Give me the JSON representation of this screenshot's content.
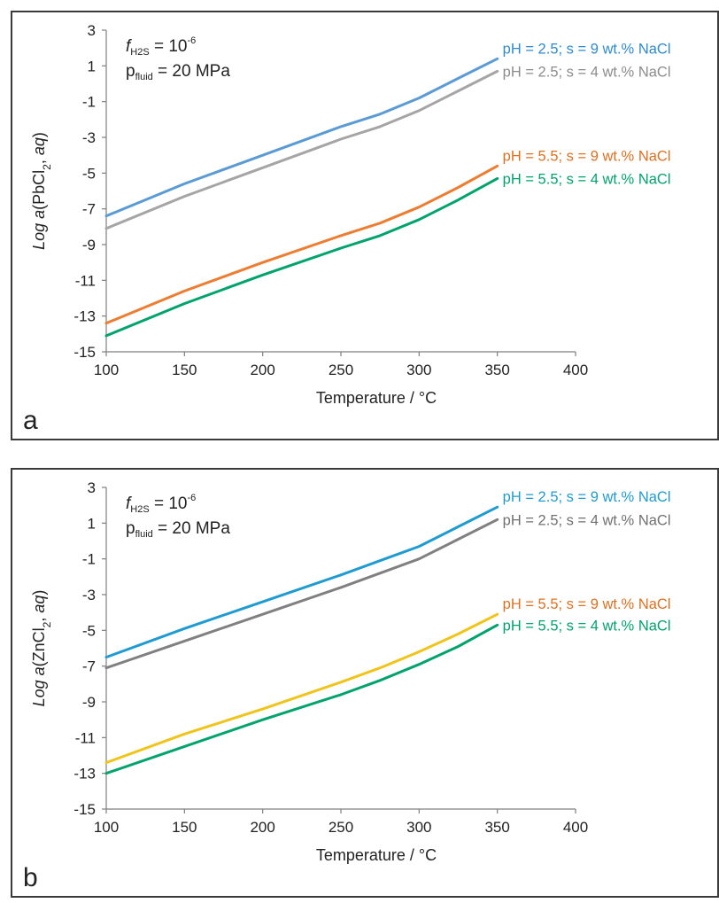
{
  "chart_data": [
    {
      "type": "line",
      "panel_label": "a",
      "annotation_f_symbol": "f",
      "annotation_f_sub": "H2S",
      "annotation_f_eq": " = 10",
      "annotation_f_exp": "-6",
      "annotation_p_symbol": "p",
      "annotation_p_sub": "fluid",
      "annotation_p_eq": " = 20 MPa",
      "ylabel_prefix": "Log ",
      "ylabel_a": "a",
      "ylabel_mid": "(PbCl",
      "ylabel_sub": "2",
      "ylabel_comma": ", ",
      "ylabel_aq": "aq",
      "ylabel_end": ")",
      "xlabel": "Temperature / °C",
      "xlim": [
        100,
        400
      ],
      "ylim": [
        -15,
        3
      ],
      "x_ticks": [
        "100",
        "150",
        "200",
        "250",
        "300",
        "350",
        "400"
      ],
      "y_ticks": [
        "3",
        "1",
        "-1",
        "-3",
        "-5",
        "-7",
        "-9",
        "-11",
        "-13",
        "-15"
      ],
      "series": [
        {
          "name": "pH = 2.5; s = 9 wt.% NaCl",
          "color": "#5b9bd5",
          "x": [
            100,
            150,
            200,
            250,
            275,
            300,
            325,
            350
          ],
          "y": [
            -7.4,
            -5.6,
            -4.0,
            -2.4,
            -1.7,
            -0.8,
            0.3,
            1.4
          ]
        },
        {
          "name": "pH = 2.5; s = 4 wt.% NaCl",
          "color": "#a5a5a5",
          "x": [
            100,
            150,
            200,
            250,
            275,
            300,
            325,
            350
          ],
          "y": [
            -8.1,
            -6.3,
            -4.7,
            -3.1,
            -2.4,
            -1.5,
            -0.4,
            0.7
          ]
        },
        {
          "name": "pH = 5.5; s = 9 wt.% NaCl",
          "color": "#ed7d31",
          "x": [
            100,
            150,
            200,
            250,
            275,
            300,
            325,
            350
          ],
          "y": [
            -13.4,
            -11.6,
            -10.0,
            -8.5,
            -7.8,
            -6.9,
            -5.8,
            -4.6
          ]
        },
        {
          "name": "pH = 5.5; s = 4 wt.% NaCl",
          "color": "#00a36c",
          "x": [
            100,
            150,
            200,
            250,
            275,
            300,
            325,
            350
          ],
          "y": [
            -14.1,
            -12.3,
            -10.7,
            -9.2,
            -8.5,
            -7.6,
            -6.5,
            -5.3
          ]
        }
      ]
    },
    {
      "type": "line",
      "panel_label": "b",
      "annotation_f_symbol": "f",
      "annotation_f_sub": "H2S",
      "annotation_f_eq": " = 10",
      "annotation_f_exp": "-6",
      "annotation_p_symbol": "p",
      "annotation_p_sub": "fluid",
      "annotation_p_eq": " = 20 MPa",
      "ylabel_prefix": "Log ",
      "ylabel_a": "a",
      "ylabel_mid": "(ZnCl",
      "ylabel_sub": "2",
      "ylabel_comma": ", ",
      "ylabel_aq": "aq",
      "ylabel_end": ")",
      "xlabel": "Temperature / °C",
      "xlim": [
        100,
        400
      ],
      "ylim": [
        -15,
        3
      ],
      "x_ticks": [
        "100",
        "150",
        "200",
        "250",
        "300",
        "350",
        "400"
      ],
      "y_ticks": [
        "3",
        "1",
        "-1",
        "-3",
        "-5",
        "-7",
        "-9",
        "-11",
        "-13",
        "-15"
      ],
      "series": [
        {
          "name": "pH = 2.5; s = 9 wt.% NaCl",
          "color": "#1f9bd1",
          "x": [
            100,
            150,
            200,
            250,
            275,
            300,
            325,
            350
          ],
          "y": [
            -6.5,
            -4.9,
            -3.4,
            -1.9,
            -1.1,
            -0.3,
            0.8,
            1.9
          ]
        },
        {
          "name": "pH = 2.5; s = 4 wt.% NaCl",
          "color": "#808080",
          "x": [
            100,
            150,
            200,
            250,
            275,
            300,
            325,
            350
          ],
          "y": [
            -7.1,
            -5.6,
            -4.1,
            -2.6,
            -1.8,
            -1.0,
            0.1,
            1.2
          ]
        },
        {
          "name": "pH = 5.5; s = 9 wt.% NaCl",
          "color": "#f0c419",
          "x": [
            100,
            150,
            200,
            250,
            275,
            300,
            325,
            350
          ],
          "y": [
            -12.4,
            -10.8,
            -9.4,
            -7.9,
            -7.1,
            -6.2,
            -5.2,
            -4.1
          ]
        },
        {
          "name": "pH = 5.5; s = 4 wt.% NaCl",
          "color": "#00a36c",
          "x": [
            100,
            150,
            200,
            250,
            275,
            300,
            325,
            350
          ],
          "y": [
            -13.0,
            -11.5,
            -10.0,
            -8.6,
            -7.8,
            -6.9,
            -5.9,
            -4.7
          ]
        }
      ]
    }
  ],
  "legend_label_colors": {
    "a": [
      "#2e8bd0",
      "#8c8c8c",
      "#e0701f",
      "#00a36c"
    ],
    "b": [
      "#1f9bd1",
      "#707070",
      "#e0701f",
      "#00a36c"
    ]
  }
}
